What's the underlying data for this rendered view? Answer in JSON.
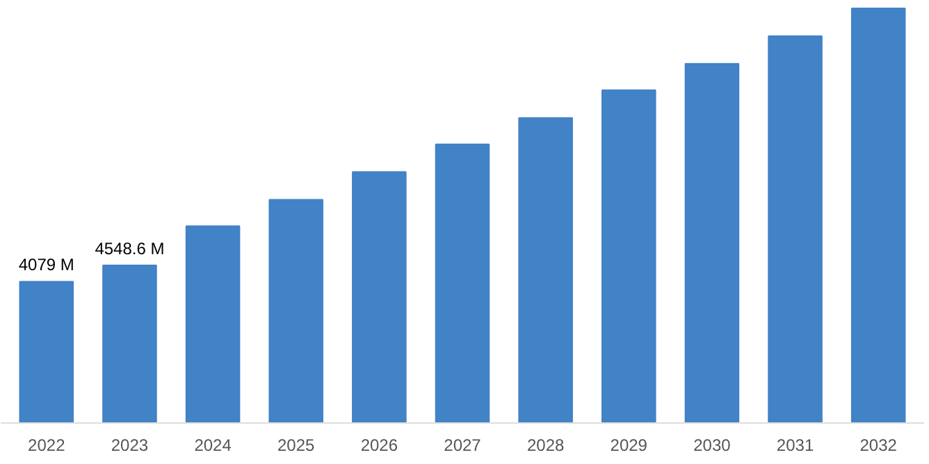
{
  "chart_data": {
    "type": "bar",
    "categories": [
      "2022",
      "2023",
      "2024",
      "2025",
      "2026",
      "2027",
      "2028",
      "2029",
      "2030",
      "2031",
      "2032"
    ],
    "values": [
      4079,
      4548.6,
      5680,
      6440,
      7240,
      8040,
      8800,
      9600,
      10360,
      11160,
      11960
    ],
    "value_labels": [
      "4079 M",
      "4548.6 M",
      null,
      null,
      null,
      null,
      null,
      null,
      null,
      null,
      null
    ],
    "color": "#4282c6",
    "grid": false
  }
}
